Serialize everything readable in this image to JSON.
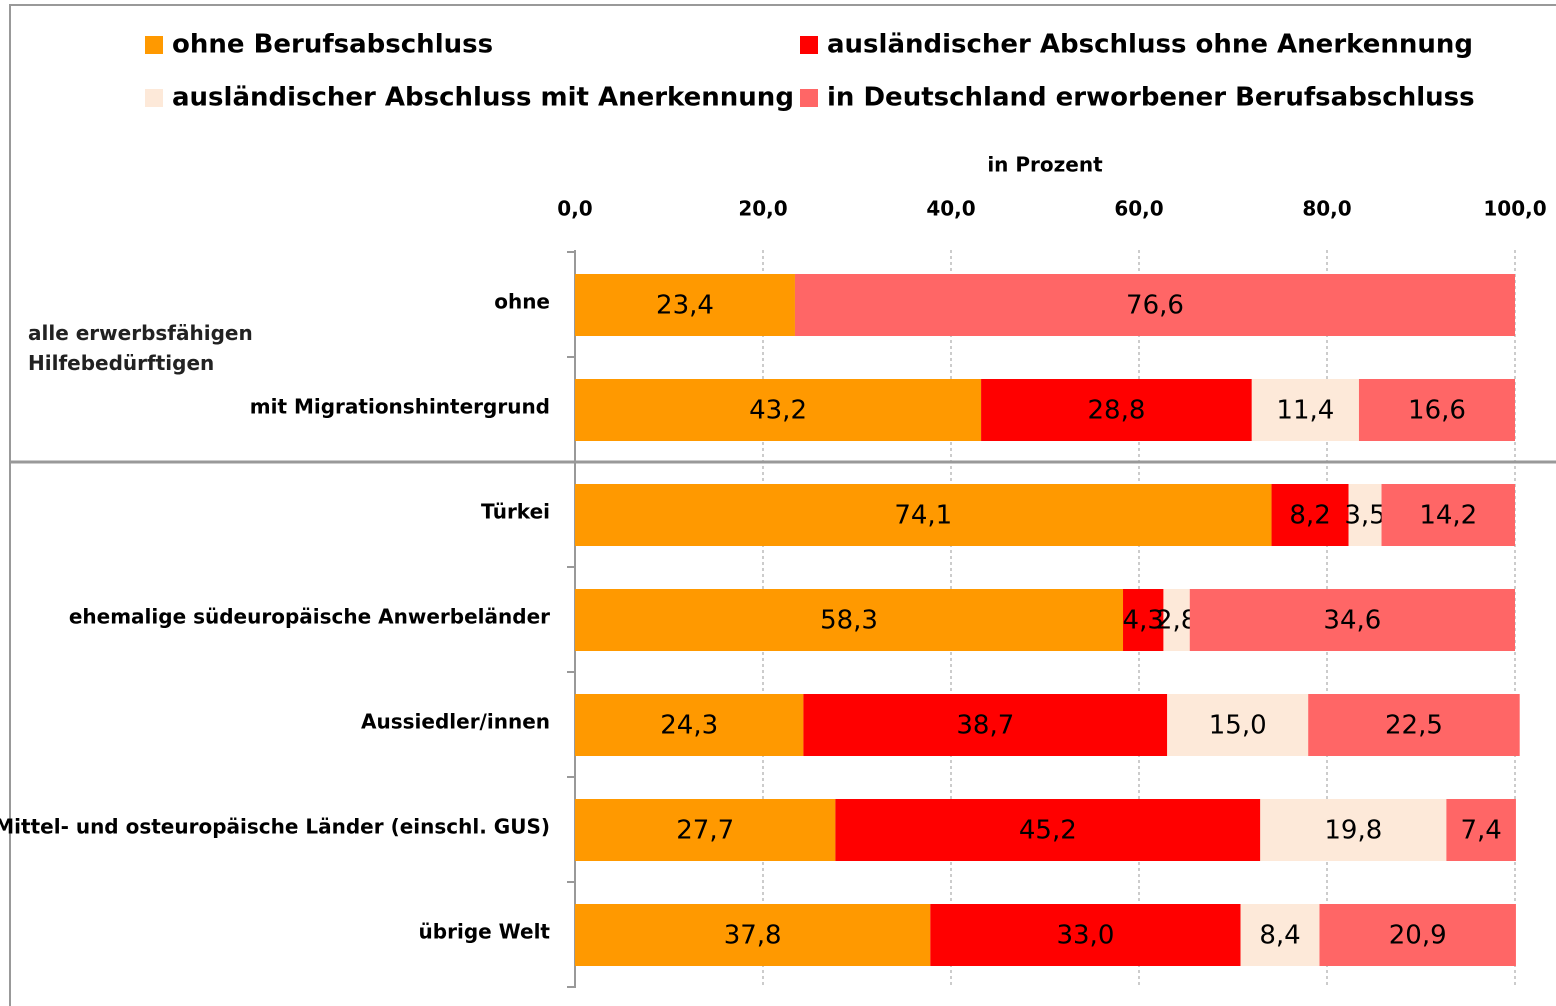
{
  "chart_data": {
    "type": "stacked_bar_horizontal",
    "x_axis_label": "in Prozent",
    "group_label": "alle erwerbsfähigen Hilfebedürftigen",
    "categories": [
      "ohne",
      "mit Migrationshintergrund",
      "Türkei",
      "ehemalige südeuropäische Anwerbeländer",
      "Aussiedler/innen",
      "Mittel- und osteuropäische Länder (einschl. GUS)",
      "übrige Welt"
    ],
    "series": [
      {
        "name": "ohne Berufsabschluss",
        "color": "#ff9900",
        "values": [
          23.4,
          43.2,
          74.1,
          58.3,
          24.3,
          27.7,
          37.8
        ],
        "value_labels": [
          "23,4",
          "43,2",
          "74,1",
          "58,3",
          "24,3",
          "27,7",
          "37,8"
        ]
      },
      {
        "name": "ausländischer Abschluss ohne Anerkennung",
        "color": "#ff0000",
        "values": [
          null,
          28.8,
          8.2,
          4.3,
          38.7,
          45.2,
          33.0
        ],
        "value_labels": [
          null,
          "28,8",
          "8,2",
          "4,3",
          "38,7",
          "45,2",
          "33,0"
        ]
      },
      {
        "name": "ausländischer Abschluss mit Anerkennung",
        "color": "#fde9d9",
        "values": [
          null,
          11.4,
          3.5,
          2.8,
          15.0,
          19.8,
          8.4
        ],
        "value_labels": [
          null,
          "11,4",
          "3,5",
          "2,8",
          "15,0",
          "19,8",
          "8,4"
        ]
      },
      {
        "name": "in Deutschland erworbener Berufsabschluss",
        "color": "#ff6666",
        "values": [
          76.6,
          16.6,
          14.2,
          34.6,
          22.5,
          7.4,
          20.9
        ],
        "value_labels": [
          "76,6",
          "16,6",
          "14,2",
          "34,6",
          "22,5",
          "7,4",
          "20,9"
        ]
      }
    ],
    "xlim": [
      0,
      100
    ],
    "xticks": [
      {
        "value": 0,
        "label": "0,0"
      },
      {
        "value": 20,
        "label": "20,0"
      },
      {
        "value": 40,
        "label": "40,0"
      },
      {
        "value": 60,
        "label": "60,0"
      },
      {
        "value": 80,
        "label": "80,0"
      },
      {
        "value": 100,
        "label": "100,0"
      }
    ],
    "grid": true,
    "legend": "top"
  }
}
